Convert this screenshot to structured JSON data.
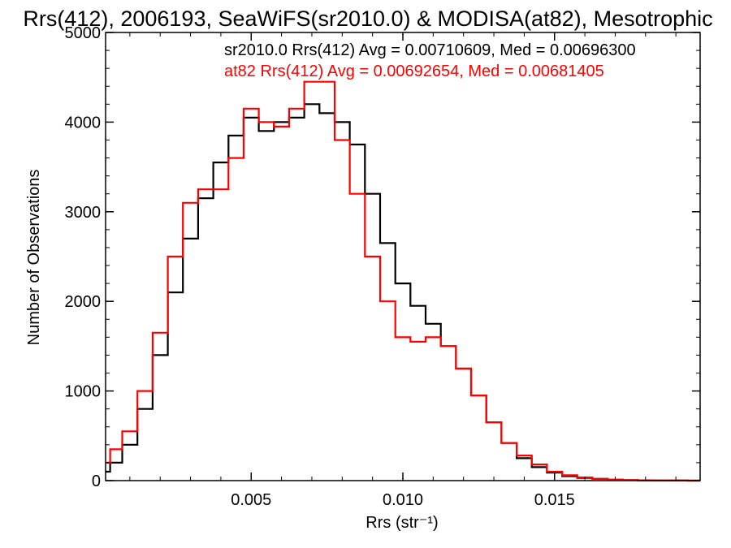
{
  "chart_data": {
    "type": "line",
    "title": "Rrs(412), 2006193, SeaWiFS(sr2010.0) & MODISA(at82), Mesotrophic",
    "xlabel": "Rrs (str⁻¹)",
    "ylabel": "Number of Observations",
    "xlim": [
      0.0002,
      0.0198
    ],
    "ylim": [
      0,
      5000
    ],
    "xticks": [
      0.005,
      0.01,
      0.015
    ],
    "xtick_labels": [
      "0.005",
      "0.010",
      "0.015"
    ],
    "yticks": [
      0,
      1000,
      2000,
      3000,
      4000,
      5000
    ],
    "ytick_labels": [
      "0",
      "1000",
      "2000",
      "3000",
      "4000",
      "5000"
    ],
    "step": "histogram",
    "series": [
      {
        "name": "sr2010.0",
        "color": "#000000",
        "label": "sr2010.0 Rrs(412) Avg = 0.00710609, Med = 0.00696300",
        "x": [
          0.0002,
          0.0005,
          0.001,
          0.0015,
          0.002,
          0.0025,
          0.003,
          0.0035,
          0.004,
          0.0045,
          0.005,
          0.0055,
          0.006,
          0.0065,
          0.007,
          0.0075,
          0.008,
          0.0085,
          0.009,
          0.0095,
          0.01,
          0.0105,
          0.011,
          0.0115,
          0.012,
          0.0125,
          0.013,
          0.0135,
          0.014,
          0.0145,
          0.015,
          0.0155,
          0.016,
          0.0165,
          0.017,
          0.0175,
          0.018,
          0.0185,
          0.019,
          0.0198
        ],
        "y": [
          100,
          200,
          400,
          800,
          1400,
          2100,
          2700,
          3150,
          3550,
          3850,
          4050,
          3900,
          4000,
          4050,
          4200,
          4100,
          4000,
          3750,
          3200,
          2650,
          2200,
          1950,
          1750,
          1500,
          1250,
          950,
          650,
          420,
          250,
          150,
          90,
          50,
          30,
          20,
          10,
          5,
          3,
          2,
          1,
          0
        ]
      },
      {
        "name": "at82",
        "color": "#ff0000",
        "label": "at82 Rrs(412) Avg = 0.00692654, Med = 0.00681405",
        "x": [
          0.0002,
          0.0005,
          0.001,
          0.0015,
          0.002,
          0.0025,
          0.003,
          0.0035,
          0.004,
          0.0045,
          0.005,
          0.0055,
          0.006,
          0.0065,
          0.007,
          0.0075,
          0.008,
          0.0085,
          0.009,
          0.0095,
          0.01,
          0.0105,
          0.011,
          0.0115,
          0.012,
          0.0125,
          0.013,
          0.0135,
          0.014,
          0.0145,
          0.015,
          0.0155,
          0.016,
          0.0165,
          0.017,
          0.0175,
          0.018,
          0.0185,
          0.019,
          0.0198
        ],
        "y": [
          200,
          350,
          550,
          1000,
          1650,
          2500,
          3100,
          3250,
          3250,
          3600,
          4150,
          4000,
          3950,
          4150,
          4450,
          4450,
          3800,
          3200,
          2500,
          2000,
          1600,
          1550,
          1600,
          1500,
          1250,
          950,
          650,
          420,
          280,
          180,
          100,
          60,
          35,
          20,
          10,
          5,
          3,
          2,
          1,
          0
        ]
      }
    ]
  }
}
